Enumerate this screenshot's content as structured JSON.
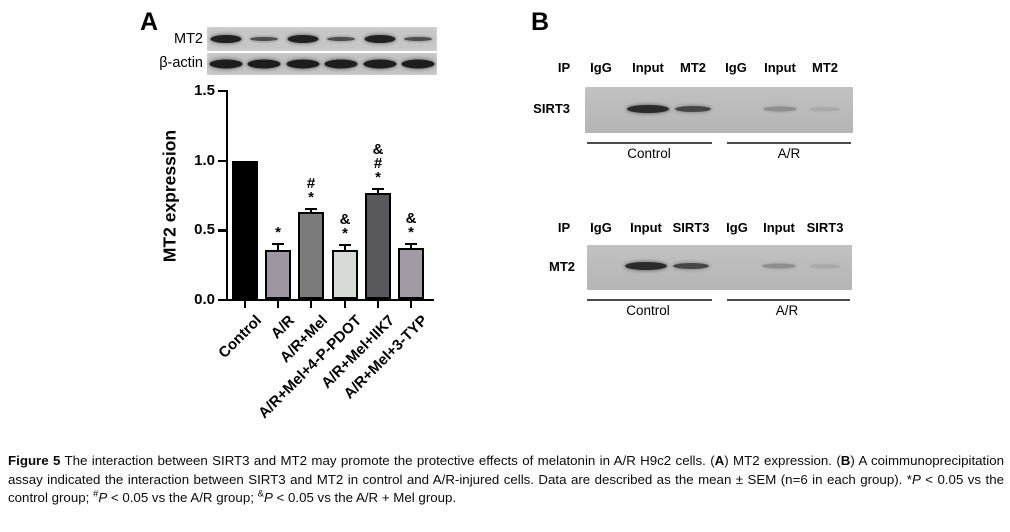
{
  "panel_a": {
    "label": "A",
    "blot_rows": [
      {
        "label": "MT2",
        "bands": [
          "strong",
          "weak",
          "strong",
          "weak",
          "strong",
          "weak"
        ]
      },
      {
        "label": "β-actin",
        "bands": [
          "strong",
          "strong",
          "strong",
          "strong",
          "strong",
          "strong"
        ]
      }
    ]
  },
  "panel_b": {
    "label": "B",
    "blots": [
      {
        "ip_label": "IP",
        "lane_headers": [
          "IgG",
          "Input",
          "MT2",
          "IgG",
          "Input",
          "MT2"
        ],
        "row_label": "SIRT3",
        "bands": [
          "none",
          "strong",
          "medium",
          "none",
          "faint",
          "trace"
        ],
        "group_labels": [
          "Control",
          "A/R"
        ]
      },
      {
        "ip_label": "IP",
        "lane_headers": [
          "IgG",
          "Input",
          "SIRT3",
          "IgG",
          "Input",
          "SIRT3"
        ],
        "row_label": "MT2",
        "bands": [
          "none",
          "strong",
          "medium",
          "none",
          "faint",
          "trace"
        ],
        "group_labels": [
          "Control",
          "A/R"
        ]
      }
    ]
  },
  "chart_data": {
    "type": "bar",
    "title": "",
    "ylabel": "MT2 expression",
    "xlabel": "",
    "categories": [
      "Control",
      "A/R",
      "A/R+Mel",
      "A/R+Mel+4-P-PDOT",
      "A/R+Mel+IIK7",
      "A/R+Mel+3-TYP"
    ],
    "values": [
      1.0,
      0.36,
      0.63,
      0.36,
      0.77,
      0.37
    ],
    "errors": [
      0,
      0.04,
      0.025,
      0.035,
      0.03,
      0.03
    ],
    "annotations": [
      [],
      [
        "*"
      ],
      [
        "#",
        "*"
      ],
      [
        "&",
        "*"
      ],
      [
        "&",
        "#",
        "*"
      ],
      [
        "&",
        "*"
      ]
    ],
    "bar_colors": [
      "#000000",
      "#9e97a1",
      "#7b7b7b",
      "#d7dbd7",
      "#59595b",
      "#a29ba5"
    ],
    "yticks": [
      "0.0",
      "0.5",
      "1.0",
      "1.5"
    ],
    "ylim": [
      0,
      1.5
    ],
    "grid": false,
    "legend": null
  },
  "caption": {
    "segments": [
      {
        "text": "Figure 5",
        "bold": true
      },
      {
        "text": " The interaction between SIRT3 and MT2 may promote the protective effects of melatonin in A/R H9c2 cells. ("
      },
      {
        "text": "A",
        "bold": true
      },
      {
        "text": ") MT2 expression. ("
      },
      {
        "text": "B",
        "bold": true
      },
      {
        "text": ") A coimmunoprecipitation assay indicated the interaction between SIRT3 and MT2 in control and A/R-injured cells. Data are described as the mean ± SEM (n=6 in each group). *"
      },
      {
        "text": "P",
        "italic": true
      },
      {
        "text": " < 0.05 vs the control group; "
      },
      {
        "text": "#",
        "sup": true
      },
      {
        "text": "P",
        "italic": true
      },
      {
        "text": " < 0.05 vs the A/R group; "
      },
      {
        "text": "&",
        "sup": true
      },
      {
        "text": "P",
        "italic": true
      },
      {
        "text": " < 0.05 vs the A/R + Mel group."
      }
    ]
  }
}
